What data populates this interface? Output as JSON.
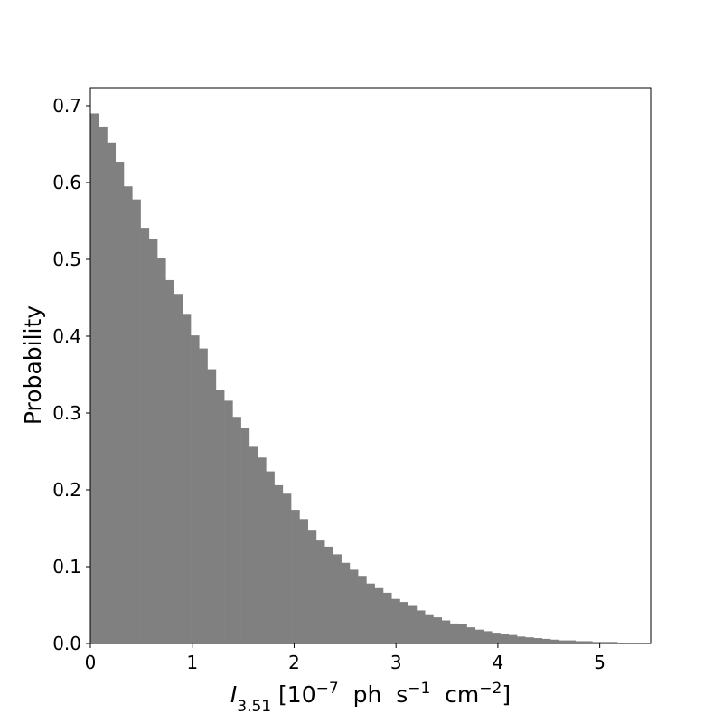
{
  "chart_data": {
    "type": "histogram",
    "ylabel": "Probability",
    "xlabel_parts": [
      {
        "text": "I",
        "style": "italic"
      },
      {
        "text": "3.51",
        "style": "sub"
      },
      {
        "text": " [10",
        "style": "normal"
      },
      {
        "text": "−7",
        "style": "sup"
      },
      {
        "text": "  ph  s",
        "style": "normal"
      },
      {
        "text": "−1",
        "style": "sup"
      },
      {
        "text": "  cm",
        "style": "normal"
      },
      {
        "text": "−2",
        "style": "sup"
      },
      {
        "text": "]",
        "style": "normal"
      }
    ],
    "color": "#808080",
    "bins": [
      0,
      0.082,
      0.164,
      0.246,
      0.328,
      0.411,
      0.493,
      0.575,
      0.657,
      0.739,
      0.821,
      0.903,
      0.985,
      1.067,
      1.149,
      1.232,
      1.314,
      1.396,
      1.478,
      1.56,
      1.642,
      1.724,
      1.806,
      1.888,
      1.97,
      2.053,
      2.135,
      2.217,
      2.299,
      2.381,
      2.463,
      2.545,
      2.627,
      2.709,
      2.791,
      2.874,
      2.956,
      3.038,
      3.12,
      3.202,
      3.284,
      3.366,
      3.448,
      3.53,
      3.612,
      3.695,
      3.777,
      3.859,
      3.941,
      4.023,
      4.105,
      4.187,
      4.269,
      4.351,
      4.433,
      4.516,
      4.598,
      4.68,
      4.762,
      4.844,
      4.926,
      5.008,
      5.09,
      5.172,
      5.254,
      5.337,
      5.419,
      5.5
    ],
    "values": [
      0.69,
      0.673,
      0.652,
      0.627,
      0.595,
      0.578,
      0.541,
      0.527,
      0.502,
      0.473,
      0.455,
      0.429,
      0.401,
      0.384,
      0.357,
      0.33,
      0.316,
      0.295,
      0.28,
      0.256,
      0.242,
      0.224,
      0.206,
      0.195,
      0.174,
      0.162,
      0.148,
      0.134,
      0.126,
      0.116,
      0.105,
      0.096,
      0.088,
      0.078,
      0.072,
      0.066,
      0.058,
      0.054,
      0.05,
      0.043,
      0.038,
      0.034,
      0.03,
      0.026,
      0.025,
      0.021,
      0.018,
      0.016,
      0.014,
      0.012,
      0.011,
      0.009,
      0.008,
      0.007,
      0.006,
      0.005,
      0.004,
      0.004,
      0.003,
      0.003,
      0.002,
      0.002,
      0.002,
      0.001,
      0.001,
      0.0005,
      0.0003
    ],
    "xlim": [
      0,
      5.5
    ],
    "ylim": [
      0,
      0.7235
    ],
    "xticks": [
      0,
      1,
      2,
      3,
      4,
      5
    ],
    "yticks": [
      {
        "value": 0,
        "label": "0.0"
      },
      0.1,
      0.2,
      0.3,
      0.4,
      0.5,
      0.6,
      0.7
    ]
  }
}
